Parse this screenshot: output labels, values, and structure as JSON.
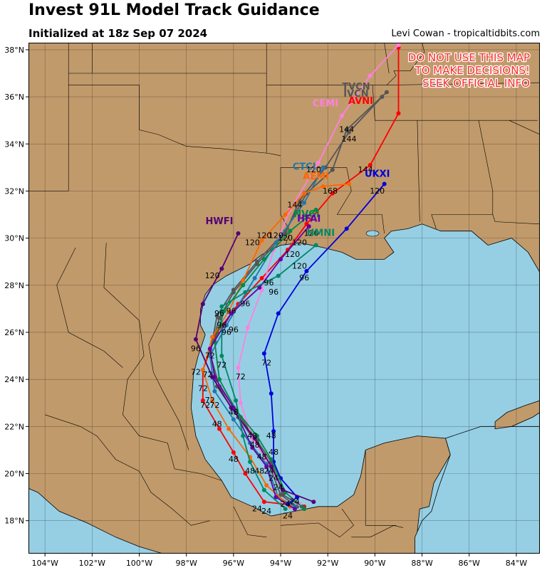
{
  "header": {
    "title": "Invest 91L Model Track Guidance",
    "subtitle": "Initialized at 18z Sep 07 2024",
    "credit": "Levi Cowan - tropicaltidbits.com"
  },
  "warning": [
    "DO NOT USE THIS MAP",
    "TO MAKE DECISIONS!",
    "SEEK OFFICIAL INFO"
  ],
  "colors": {
    "ocean": "#96cfe4",
    "land": "#c19a6b",
    "border": "#000000",
    "warning": "#ff2a2a"
  },
  "map": {
    "lon_range": [
      -104.7,
      -83.0
    ],
    "lat_range": [
      16.6,
      38.3
    ],
    "lon_ticks": [
      -104,
      -102,
      -100,
      -98,
      -96,
      -94,
      -92,
      -90,
      -88,
      -86,
      -84
    ],
    "lon_tick_labels": [
      "104°W",
      "102°W",
      "100°W",
      "98°W",
      "96°W",
      "94°W",
      "92°W",
      "90°W",
      "88°W",
      "86°W",
      "84°W"
    ],
    "lat_ticks": [
      18,
      20,
      22,
      24,
      26,
      28,
      30,
      32,
      34,
      36,
      38
    ],
    "lat_tick_labels": [
      "18°N",
      "20°N",
      "22°N",
      "24°N",
      "26°N",
      "28°N",
      "30°N",
      "32°N",
      "34°N",
      "36°N",
      "38°N"
    ],
    "grid": true
  },
  "models": [
    {
      "name": "AVNI",
      "color": "#ff0000",
      "track": [
        [
          -93.0,
          18.6
        ],
        [
          -94.7,
          18.8
        ],
        [
          -95.5,
          20.0
        ],
        [
          -96.0,
          20.9
        ],
        [
          -96.6,
          21.9
        ],
        [
          -97.3,
          23.1
        ],
        [
          -97.3,
          24.4
        ],
        [
          -96.7,
          26.0
        ],
        [
          -95.8,
          27.2
        ],
        [
          -94.8,
          28.3
        ],
        [
          -93.7,
          29.5
        ],
        [
          -92.9,
          30.6
        ],
        [
          -91.8,
          31.9
        ],
        [
          -90.2,
          33.1
        ],
        [
          -89.0,
          35.3
        ],
        [
          -89.0,
          38.1
        ]
      ],
      "label": [
        -90.6,
        35.7
      ]
    },
    {
      "name": "IVCN",
      "color": "#555555",
      "track": [
        [
          -93.1,
          18.6
        ],
        [
          -93.9,
          19.1
        ],
        [
          -94.4,
          20.5
        ],
        [
          -95.0,
          21.4
        ],
        [
          -95.7,
          22.4
        ],
        [
          -96.6,
          23.7
        ],
        [
          -97.0,
          25.1
        ],
        [
          -96.7,
          26.7
        ],
        [
          -96.0,
          27.8
        ],
        [
          -95.0,
          29.0
        ],
        [
          -93.8,
          30.3
        ],
        [
          -92.9,
          31.9
        ],
        [
          -91.8,
          32.9
        ],
        [
          -91.2,
          34.6
        ],
        [
          -89.5,
          36.2
        ]
      ],
      "label": [
        -90.8,
        36.0
      ]
    },
    {
      "name": "TVCN",
      "color": "#555555",
      "track": [
        [
          -93.3,
          18.6
        ],
        [
          -94.0,
          19.1
        ],
        [
          -94.5,
          20.4
        ],
        [
          -95.1,
          21.4
        ],
        [
          -95.8,
          22.4
        ],
        [
          -96.7,
          23.7
        ],
        [
          -97.0,
          25.2
        ],
        [
          -96.6,
          26.6
        ],
        [
          -96.0,
          27.7
        ],
        [
          -95.0,
          28.9
        ],
        [
          -93.8,
          30.2
        ],
        [
          -93.2,
          31.6
        ],
        [
          -92.1,
          33.0
        ],
        [
          -91.1,
          34.5
        ],
        [
          -89.7,
          36.0
        ]
      ],
      "label": [
        -90.8,
        36.3
      ]
    },
    {
      "name": "CEMI",
      "color": "#ff80e0",
      "track": [
        [
          -93.2,
          18.7
        ],
        [
          -93.9,
          19.3
        ],
        [
          -94.6,
          20.6
        ],
        [
          -95.2,
          21.5
        ],
        [
          -95.7,
          23.0
        ],
        [
          -95.8,
          24.5
        ],
        [
          -95.4,
          26.2
        ],
        [
          -94.8,
          27.8
        ],
        [
          -94.3,
          29.5
        ],
        [
          -93.6,
          31.2
        ],
        [
          -92.4,
          33.2
        ],
        [
          -91.4,
          35.2
        ],
        [
          -90.2,
          36.9
        ],
        [
          -89.0,
          38.2
        ]
      ],
      "label": [
        -92.1,
        35.6
      ]
    },
    {
      "name": "CTCI",
      "color": "#2277aa",
      "track": [
        [
          -93.4,
          18.6
        ],
        [
          -94.1,
          19.0
        ],
        [
          -94.6,
          20.4
        ],
        [
          -95.3,
          21.3
        ],
        [
          -96.0,
          22.3
        ],
        [
          -96.8,
          23.5
        ],
        [
          -97.0,
          25.0
        ],
        [
          -96.3,
          26.3
        ],
        [
          -95.1,
          28.3
        ],
        [
          -94.2,
          29.8
        ],
        [
          -93.0,
          31.5
        ],
        [
          -92.2,
          33.0
        ]
      ],
      "label": [
        -93.0,
        32.9
      ]
    },
    {
      "name": "AEMI",
      "color": "#ff6600",
      "track": [
        [
          -93.6,
          18.6
        ],
        [
          -94.6,
          19.5
        ],
        [
          -95.3,
          20.7
        ],
        [
          -96.2,
          21.9
        ],
        [
          -96.9,
          23.1
        ],
        [
          -97.3,
          24.4
        ],
        [
          -96.9,
          25.8
        ],
        [
          -96.2,
          26.9
        ],
        [
          -95.6,
          28.2
        ],
        [
          -94.8,
          29.9
        ],
        [
          -93.8,
          31.0
        ],
        [
          -93.0,
          31.9
        ],
        [
          -92.2,
          32.2
        ],
        [
          -91.1,
          32.3
        ]
      ],
      "label": [
        -92.5,
        32.5
      ]
    },
    {
      "name": "UKXI",
      "color": "#0000dd",
      "track": [
        [
          -93.7,
          18.7
        ],
        [
          -93.3,
          19.0
        ],
        [
          -94.0,
          19.8
        ],
        [
          -94.3,
          20.5
        ],
        [
          -94.3,
          21.8
        ],
        [
          -94.4,
          23.4
        ],
        [
          -94.7,
          25.1
        ],
        [
          -94.1,
          26.8
        ],
        [
          -92.9,
          28.6
        ],
        [
          -91.2,
          30.4
        ],
        [
          -89.6,
          32.3
        ]
      ],
      "label": [
        -89.9,
        32.6
      ]
    },
    {
      "name": "NVGI",
      "color": "#008844",
      "track": [
        [
          -93.0,
          18.5
        ],
        [
          -93.8,
          19.2
        ],
        [
          -94.4,
          20.6
        ],
        [
          -95.0,
          21.6
        ],
        [
          -95.9,
          22.7
        ],
        [
          -96.6,
          24.0
        ],
        [
          -96.8,
          25.6
        ],
        [
          -96.4,
          26.9
        ],
        [
          -95.6,
          28.0
        ],
        [
          -94.7,
          29.1
        ],
        [
          -93.6,
          30.3
        ],
        [
          -92.5,
          31.2
        ]
      ],
      "label": [
        -92.9,
        30.9
      ]
    },
    {
      "name": "HFAI",
      "color": "#6600aa",
      "track": [
        [
          -93.4,
          18.5
        ],
        [
          -94.2,
          19.0
        ],
        [
          -94.6,
          20.3
        ],
        [
          -95.2,
          21.1
        ],
        [
          -96.0,
          22.8
        ],
        [
          -96.8,
          24.1
        ],
        [
          -97.0,
          25.3
        ],
        [
          -96.1,
          26.8
        ],
        [
          -94.9,
          27.9
        ],
        [
          -94.0,
          29.1
        ],
        [
          -92.8,
          30.5
        ]
      ],
      "label": [
        -92.8,
        30.7
      ]
    },
    {
      "name": "HWFI",
      "color": "#550077",
      "track": [
        [
          -92.6,
          18.8
        ],
        [
          -93.9,
          19.3
        ],
        [
          -94.4,
          20.3
        ],
        [
          -95.1,
          21.5
        ],
        [
          -96.1,
          22.8
        ],
        [
          -96.9,
          24.1
        ],
        [
          -97.6,
          25.7
        ],
        [
          -97.3,
          27.2
        ],
        [
          -96.5,
          28.7
        ],
        [
          -95.8,
          30.2
        ]
      ],
      "label": [
        -96.6,
        30.6
      ]
    },
    {
      "name": "HMNI",
      "color": "#008866",
      "track": [
        [
          -93.8,
          18.5
        ],
        [
          -94.7,
          19.3
        ],
        [
          -95.3,
          20.5
        ],
        [
          -95.6,
          21.6
        ],
        [
          -95.9,
          23.1
        ],
        [
          -96.5,
          25.0
        ],
        [
          -96.5,
          27.1
        ],
        [
          -95.5,
          27.7
        ],
        [
          -94.1,
          28.4
        ],
        [
          -92.5,
          29.7
        ]
      ],
      "label": [
        -92.3,
        30.1
      ]
    }
  ],
  "forecast_hours": [
    {
      "t": "24",
      "pos": [
        -93.8,
        18.6
      ]
    },
    {
      "t": "24",
      "pos": [
        -94.1,
        19.3
      ]
    },
    {
      "t": "24",
      "pos": [
        -94.6,
        18.3
      ]
    },
    {
      "t": "24",
      "pos": [
        -93.7,
        18.1
      ]
    },
    {
      "t": "24",
      "pos": [
        -94.3,
        19.7
      ]
    },
    {
      "t": "24",
      "pos": [
        -94.5,
        20.0
      ]
    },
    {
      "t": "24",
      "pos": [
        -95.0,
        18.4
      ]
    },
    {
      "t": "24",
      "pos": [
        -93.4,
        18.7
      ]
    },
    {
      "t": "48",
      "pos": [
        -94.4,
        21.5
      ]
    },
    {
      "t": "48",
      "pos": [
        -95.2,
        21.5
      ]
    },
    {
      "t": "48",
      "pos": [
        -96.0,
        20.5
      ]
    },
    {
      "t": "48",
      "pos": [
        -96.7,
        22.0
      ]
    },
    {
      "t": "48",
      "pos": [
        -96.0,
        22.5
      ]
    },
    {
      "t": "48",
      "pos": [
        -95.1,
        21.1
      ]
    },
    {
      "t": "48",
      "pos": [
        -95.3,
        20.0
      ]
    },
    {
      "t": "48",
      "pos": [
        -94.8,
        20.6
      ]
    },
    {
      "t": "48",
      "pos": [
        -94.3,
        20.8
      ]
    },
    {
      "t": "48",
      "pos": [
        -94.9,
        20.0
      ]
    },
    {
      "t": "72",
      "pos": [
        -94.6,
        24.6
      ]
    },
    {
      "t": "72",
      "pos": [
        -95.7,
        24.0
      ]
    },
    {
      "t": "72",
      "pos": [
        -96.5,
        24.5
      ]
    },
    {
      "t": "72",
      "pos": [
        -97.0,
        24.9
      ]
    },
    {
      "t": "72",
      "pos": [
        -97.1,
        24.1
      ]
    },
    {
      "t": "72",
      "pos": [
        -97.3,
        23.5
      ]
    },
    {
      "t": "72",
      "pos": [
        -97.6,
        24.2
      ]
    },
    {
      "t": "72",
      "pos": [
        -97.2,
        22.8
      ]
    },
    {
      "t": "72",
      "pos": [
        -96.8,
        22.8
      ]
    },
    {
      "t": "72",
      "pos": [
        -97.0,
        23.0
      ]
    },
    {
      "t": "96",
      "pos": [
        -94.5,
        28.0
      ]
    },
    {
      "t": "96",
      "pos": [
        -93.0,
        28.2
      ]
    },
    {
      "t": "96",
      "pos": [
        -95.5,
        27.1
      ]
    },
    {
      "t": "96",
      "pos": [
        -94.3,
        27.6
      ]
    },
    {
      "t": "96",
      "pos": [
        -96.5,
        26.2
      ]
    },
    {
      "t": "96",
      "pos": [
        -96.0,
        26.0
      ]
    },
    {
      "t": "96",
      "pos": [
        -96.6,
        26.7
      ]
    },
    {
      "t": "96",
      "pos": [
        -96.1,
        26.8
      ]
    },
    {
      "t": "96",
      "pos": [
        -96.3,
        25.9
      ]
    },
    {
      "t": "96",
      "pos": [
        -97.6,
        25.2
      ]
    },
    {
      "t": "120",
      "pos": [
        -93.2,
        28.7
      ]
    },
    {
      "t": "120",
      "pos": [
        -93.5,
        29.2
      ]
    },
    {
      "t": "120",
      "pos": [
        -93.2,
        29.7
      ]
    },
    {
      "t": "120",
      "pos": [
        -95.2,
        29.7
      ]
    },
    {
      "t": "120",
      "pos": [
        -94.2,
        30.0
      ]
    },
    {
      "t": "120",
      "pos": [
        -94.7,
        30.0
      ]
    },
    {
      "t": "120",
      "pos": [
        -92.7,
        30.1
      ]
    },
    {
      "t": "120",
      "pos": [
        -89.9,
        31.9
      ]
    },
    {
      "t": "120",
      "pos": [
        -92.6,
        32.8
      ]
    },
    {
      "t": "120",
      "pos": [
        -96.9,
        28.3
      ]
    },
    {
      "t": "120",
      "pos": [
        -93.8,
        29.9
      ]
    },
    {
      "t": "144",
      "pos": [
        -93.4,
        31.3
      ]
    },
    {
      "t": "144",
      "pos": [
        -91.1,
        34.1
      ]
    },
    {
      "t": "144",
      "pos": [
        -90.4,
        32.8
      ]
    },
    {
      "t": "144",
      "pos": [
        -91.2,
        34.5
      ]
    },
    {
      "t": "168",
      "pos": [
        -91.9,
        31.9
      ]
    }
  ]
}
